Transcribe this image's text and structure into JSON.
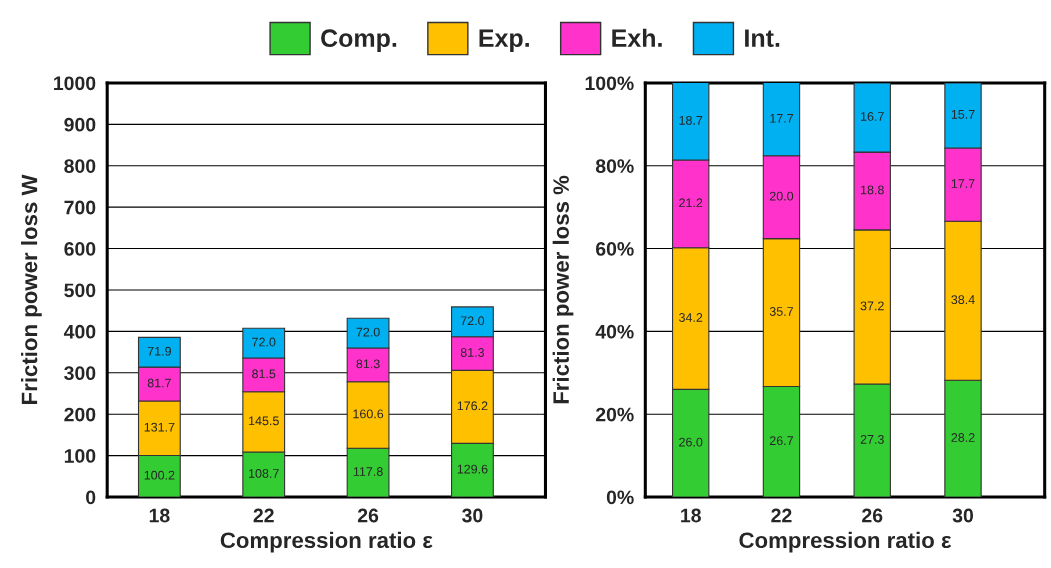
{
  "chart_data": [
    {
      "type": "bar",
      "stacked": true,
      "xlabel": "Compression ratio ε",
      "ylabel": "Friction power loss W",
      "categories": [
        "18",
        "22",
        "26",
        "30"
      ],
      "ylim": [
        0,
        1000
      ],
      "yticks": [
        0,
        100,
        200,
        300,
        400,
        500,
        600,
        700,
        800,
        900,
        1000
      ],
      "grid": "y",
      "legend": "top",
      "series": [
        {
          "name": "Comp.",
          "color": "#33cc33",
          "values": [
            100.2,
            108.7,
            117.8,
            129.6
          ],
          "value_labels": [
            "100.2",
            "108.7",
            "117.8",
            "129.6"
          ]
        },
        {
          "name": "Exp.",
          "color": "#ffc000",
          "values": [
            131.7,
            145.5,
            160.6,
            176.2
          ],
          "value_labels": [
            "131.7",
            "145.5",
            "160.6",
            "176.2"
          ]
        },
        {
          "name": "Exh.",
          "color": "#ff33cc",
          "values": [
            81.7,
            81.5,
            81.3,
            81.3
          ],
          "value_labels": [
            "81.7",
            "81.5",
            "81.3",
            "81.3"
          ]
        },
        {
          "name": "Int.",
          "color": "#00b0f0",
          "values": [
            71.9,
            72.0,
            72.0,
            72.0
          ],
          "value_labels": [
            "71.9",
            "72.0",
            "72.0",
            "72.0"
          ]
        }
      ]
    },
    {
      "type": "bar",
      "stacked": true,
      "xlabel": "Compression ratio ε",
      "ylabel": "Friction power loss %",
      "categories": [
        "18",
        "22",
        "26",
        "30"
      ],
      "ylim": [
        0,
        100
      ],
      "yticks": [
        {
          "value": 0,
          "label": "0%"
        },
        {
          "value": 20,
          "label": "20%"
        },
        {
          "value": 40,
          "label": "40%"
        },
        {
          "value": 60,
          "label": "60%"
        },
        {
          "value": 80,
          "label": "80%"
        },
        {
          "value": 100,
          "label": "100%"
        }
      ],
      "grid": "y",
      "series": [
        {
          "color": "#33cc33",
          "values": [
            26.0,
            26.7,
            27.3,
            28.2
          ],
          "value_labels": [
            "26.0",
            "26.7",
            "27.3",
            "28.2"
          ]
        },
        {
          "color": "#ffc000",
          "values": [
            34.2,
            35.7,
            37.2,
            38.4
          ],
          "value_labels": [
            "34.2",
            "35.7",
            "37.2",
            "38.4"
          ]
        },
        {
          "color": "#ff33cc",
          "values": [
            21.2,
            20.0,
            18.8,
            17.7
          ],
          "value_labels": [
            "21.2",
            "20.0",
            "18.8",
            "17.7"
          ]
        },
        {
          "color": "#00b0f0",
          "values": [
            18.7,
            17.7,
            16.7,
            15.7
          ],
          "value_labels": [
            "18.7",
            "17.7",
            "16.7",
            "15.7"
          ]
        }
      ]
    }
  ]
}
